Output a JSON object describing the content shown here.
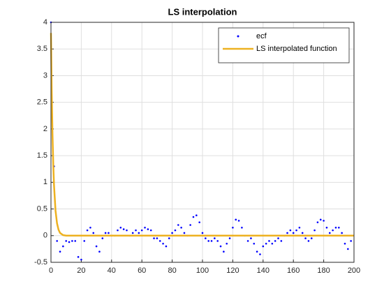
{
  "chart_data": {
    "type": "scatter",
    "title": "LS interpolation",
    "xlim": [
      0,
      200
    ],
    "ylim": [
      -0.5,
      4
    ],
    "xticks": [
      0,
      20,
      40,
      60,
      80,
      100,
      120,
      140,
      160,
      180,
      200
    ],
    "yticks": [
      -0.5,
      0,
      0.5,
      1,
      1.5,
      2,
      2.5,
      3,
      3.5,
      4
    ],
    "grid": true,
    "legend": "top-right",
    "series": [
      {
        "name": "ecf",
        "color": "#0000ff",
        "type": "scatter",
        "x": [
          0,
          2,
          4,
          6,
          8,
          10,
          12,
          14,
          16,
          18,
          20,
          22,
          24,
          26,
          28,
          30,
          32,
          34,
          36,
          38,
          40,
          42,
          44,
          46,
          48,
          50,
          52,
          54,
          56,
          58,
          60,
          62,
          64,
          66,
          68,
          70,
          72,
          74,
          76,
          78,
          80,
          82,
          84,
          86,
          88,
          90,
          92,
          94,
          96,
          98,
          100,
          102,
          104,
          106,
          108,
          110,
          112,
          114,
          116,
          118,
          120,
          122,
          124,
          126,
          128,
          130,
          132,
          134,
          136,
          138,
          140,
          142,
          144,
          146,
          148,
          150,
          152,
          154,
          156,
          158,
          160,
          162,
          164,
          166,
          168,
          170,
          172,
          174,
          176,
          178,
          180,
          182,
          184,
          186,
          188,
          190,
          192,
          194,
          196,
          198
        ],
        "values": [
          4,
          1.3,
          -0.1,
          -0.3,
          -0.2,
          -0.1,
          -0.12,
          -0.1,
          -0.1,
          -0.4,
          -0.45,
          -0.1,
          0.1,
          0.15,
          0.05,
          -0.2,
          -0.3,
          -0.05,
          0.05,
          0.05,
          0,
          0,
          0.1,
          0.15,
          0.12,
          0.1,
          0,
          0.05,
          0.1,
          0.05,
          0.1,
          0.15,
          0.12,
          0.1,
          -0.05,
          -0.05,
          -0.1,
          -0.15,
          -0.2,
          -0.05,
          0.05,
          0.1,
          0.2,
          0.15,
          0.05,
          0,
          0.2,
          0.35,
          0.38,
          0.25,
          0.05,
          -0.05,
          -0.1,
          -0.1,
          -0.05,
          -0.1,
          -0.2,
          -0.3,
          -0.15,
          -0.05,
          0.15,
          0.3,
          0.28,
          0.15,
          0,
          -0.1,
          -0.05,
          -0.15,
          -0.3,
          -0.35,
          -0.2,
          -0.15,
          -0.1,
          -0.15,
          -0.1,
          -0.05,
          -0.1,
          0,
          0.05,
          0.1,
          0.05,
          0.1,
          0.15,
          0.05,
          -0.05,
          -0.1,
          -0.05,
          0.1,
          0.25,
          0.3,
          0.28,
          0.15,
          0.05,
          0.1,
          0.15,
          0.15,
          0.05,
          -0.15,
          -0.25,
          -0.1
        ]
      },
      {
        "name": "LS interpolated function",
        "color": "#edb120",
        "type": "line",
        "x": [
          0,
          0.5,
          1,
          1.5,
          2,
          3,
          4,
          5,
          6,
          8,
          10,
          200
        ],
        "values": [
          3.8,
          2.7,
          1.9,
          1.35,
          0.95,
          0.47,
          0.23,
          0.11,
          0.05,
          0.01,
          0,
          0
        ]
      }
    ]
  }
}
